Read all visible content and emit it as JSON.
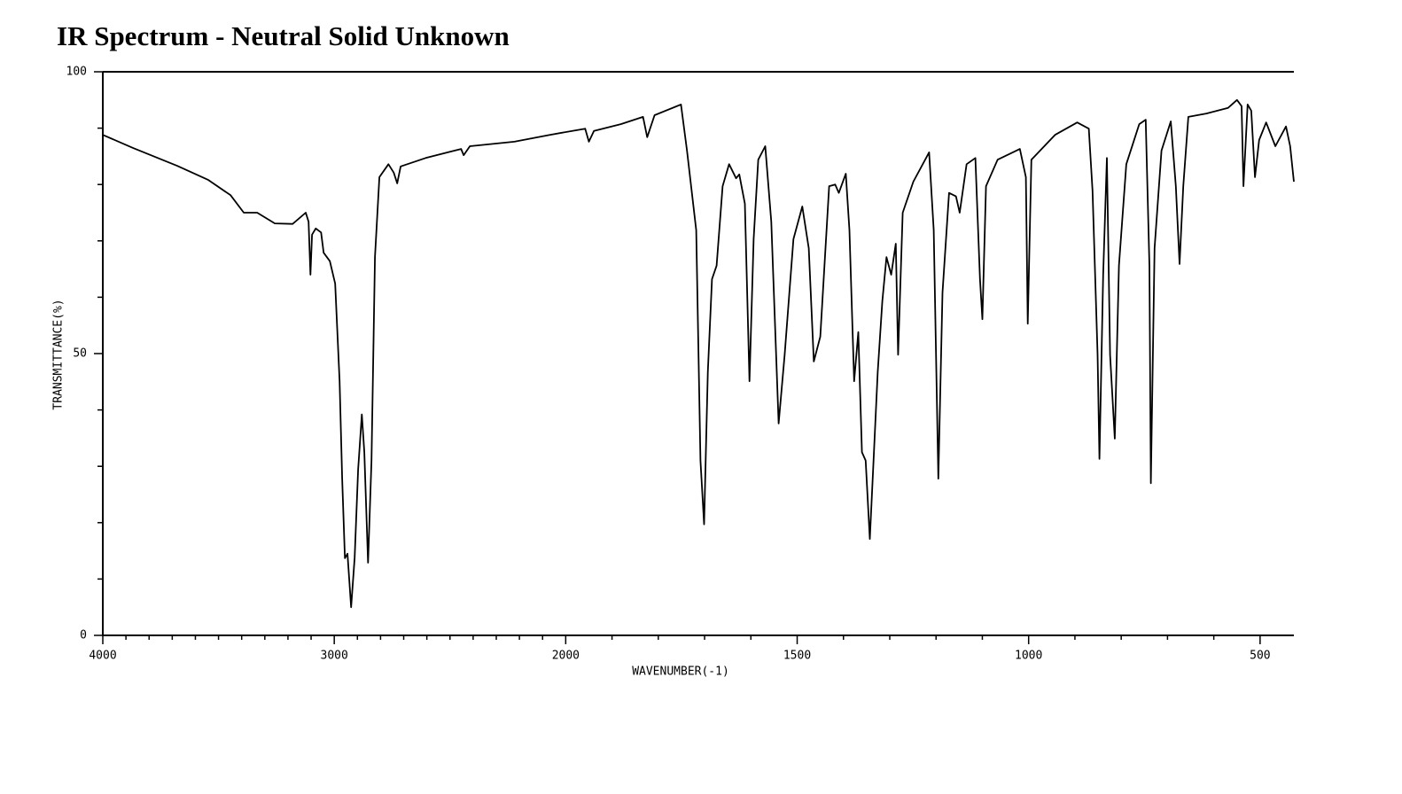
{
  "chart_data": {
    "type": "line",
    "title": "IR Spectrum - Neutral Solid Unknown",
    "xlabel": "WAVENUMBER(-1)",
    "ylabel": "TRANSMITTANCE(%)",
    "xscale": "piecewise",
    "xlim": [
      4000,
      427
    ],
    "xticks": [
      4000,
      3000,
      2000,
      1500,
      1000,
      500
    ],
    "xminorticks": [
      3900,
      3800,
      3700,
      3600,
      3500,
      3400,
      3300,
      3200,
      3100,
      2900,
      2800,
      2700,
      2600,
      2500,
      2400,
      2300,
      2200,
      2100,
      1900,
      1800,
      1700,
      1600,
      1400,
      1300,
      1200,
      1100,
      900,
      800,
      700,
      600
    ],
    "ylim": [
      0,
      100
    ],
    "yticks": [
      0,
      50,
      100
    ],
    "yminorticks": [
      10,
      20,
      30,
      40,
      60,
      70,
      80,
      90
    ],
    "series": [
      {
        "color": "#000000",
        "x": [
          4000,
          3870,
          3678,
          3544,
          3448,
          3391,
          3333,
          3257,
          3180,
          3123,
          3111,
          3103,
          3096,
          3080,
          3057,
          3046,
          3019,
          2996,
          2977,
          2966,
          2954,
          2943,
          2927,
          2912,
          2897,
          2881,
          2870,
          2854,
          2839,
          2824,
          2805,
          2766,
          2743,
          2728,
          2713,
          2605,
          2452,
          2441,
          2414,
          2222,
          2069,
          1958,
          1950,
          1939,
          1881,
          1833,
          1824,
          1808,
          1751,
          1738,
          1718,
          1709,
          1701,
          1693,
          1684,
          1674,
          1661,
          1647,
          1632,
          1625,
          1613,
          1603,
          1594,
          1584,
          1569,
          1556,
          1540,
          1527,
          1508,
          1489,
          1475,
          1464,
          1450,
          1431,
          1418,
          1410,
          1395,
          1387,
          1377,
          1368,
          1360,
          1352,
          1343,
          1335,
          1326,
          1316,
          1307,
          1297,
          1287,
          1282,
          1272,
          1249,
          1215,
          1205,
          1195,
          1186,
          1172,
          1157,
          1149,
          1134,
          1115,
          1105,
          1100,
          1092,
          1067,
          1019,
          1006,
          1002,
          994,
          943,
          895,
          870,
          862,
          851,
          847,
          839,
          831,
          824,
          814,
          805,
          789,
          761,
          747,
          739,
          736,
          728,
          713,
          693,
          682,
          674,
          666,
          655,
          616,
          569,
          550,
          540,
          536,
          527,
          519,
          511,
          502,
          487,
          467,
          444,
          435,
          427
        ],
        "values": [
          88.8,
          86.5,
          83.3,
          80.8,
          78.1,
          75,
          75,
          73.1,
          73,
          75,
          73.4,
          64,
          71.1,
          72.2,
          71.5,
          67.9,
          66.4,
          62.4,
          45.1,
          27.8,
          13.7,
          14.5,
          5,
          13.8,
          29.4,
          39.2,
          32.5,
          12.9,
          31,
          67.1,
          81.3,
          83.6,
          82.1,
          80.2,
          83.2,
          84.7,
          86.3,
          85.2,
          86.8,
          87.6,
          88.8,
          89.9,
          87.6,
          89.5,
          90.7,
          92,
          88.4,
          92.3,
          94.2,
          86,
          71.9,
          31,
          19.7,
          46.7,
          63.2,
          65.6,
          79.7,
          83.6,
          81.1,
          81.8,
          76.6,
          45.1,
          70.3,
          84.4,
          86.8,
          73.4,
          37.6,
          49.8,
          70.3,
          76.1,
          68.7,
          48.6,
          53,
          79.7,
          80,
          78.5,
          81.9,
          71.9,
          45.1,
          53.8,
          32.5,
          31,
          17.1,
          31,
          46.7,
          59.3,
          67.1,
          64,
          69.5,
          49.8,
          75,
          80.5,
          85.7,
          71.9,
          27.8,
          60.8,
          78.5,
          77.9,
          75,
          83.6,
          84.7,
          63.2,
          56.1,
          79.7,
          84.4,
          86.3,
          81.3,
          55.3,
          84.4,
          88.8,
          91,
          89.9,
          78.9,
          49.8,
          31.3,
          64,
          84.7,
          49.8,
          34.9,
          65.6,
          83.6,
          90.7,
          91.5,
          65.6,
          27,
          68.7,
          86,
          91.2,
          79.7,
          65.9,
          79.7,
          92,
          92.6,
          93.6,
          95,
          93.9,
          79.7,
          94.2,
          93.1,
          81.3,
          87.9,
          91,
          86.8,
          90.3,
          86.8,
          80.5
        ]
      }
    ]
  }
}
